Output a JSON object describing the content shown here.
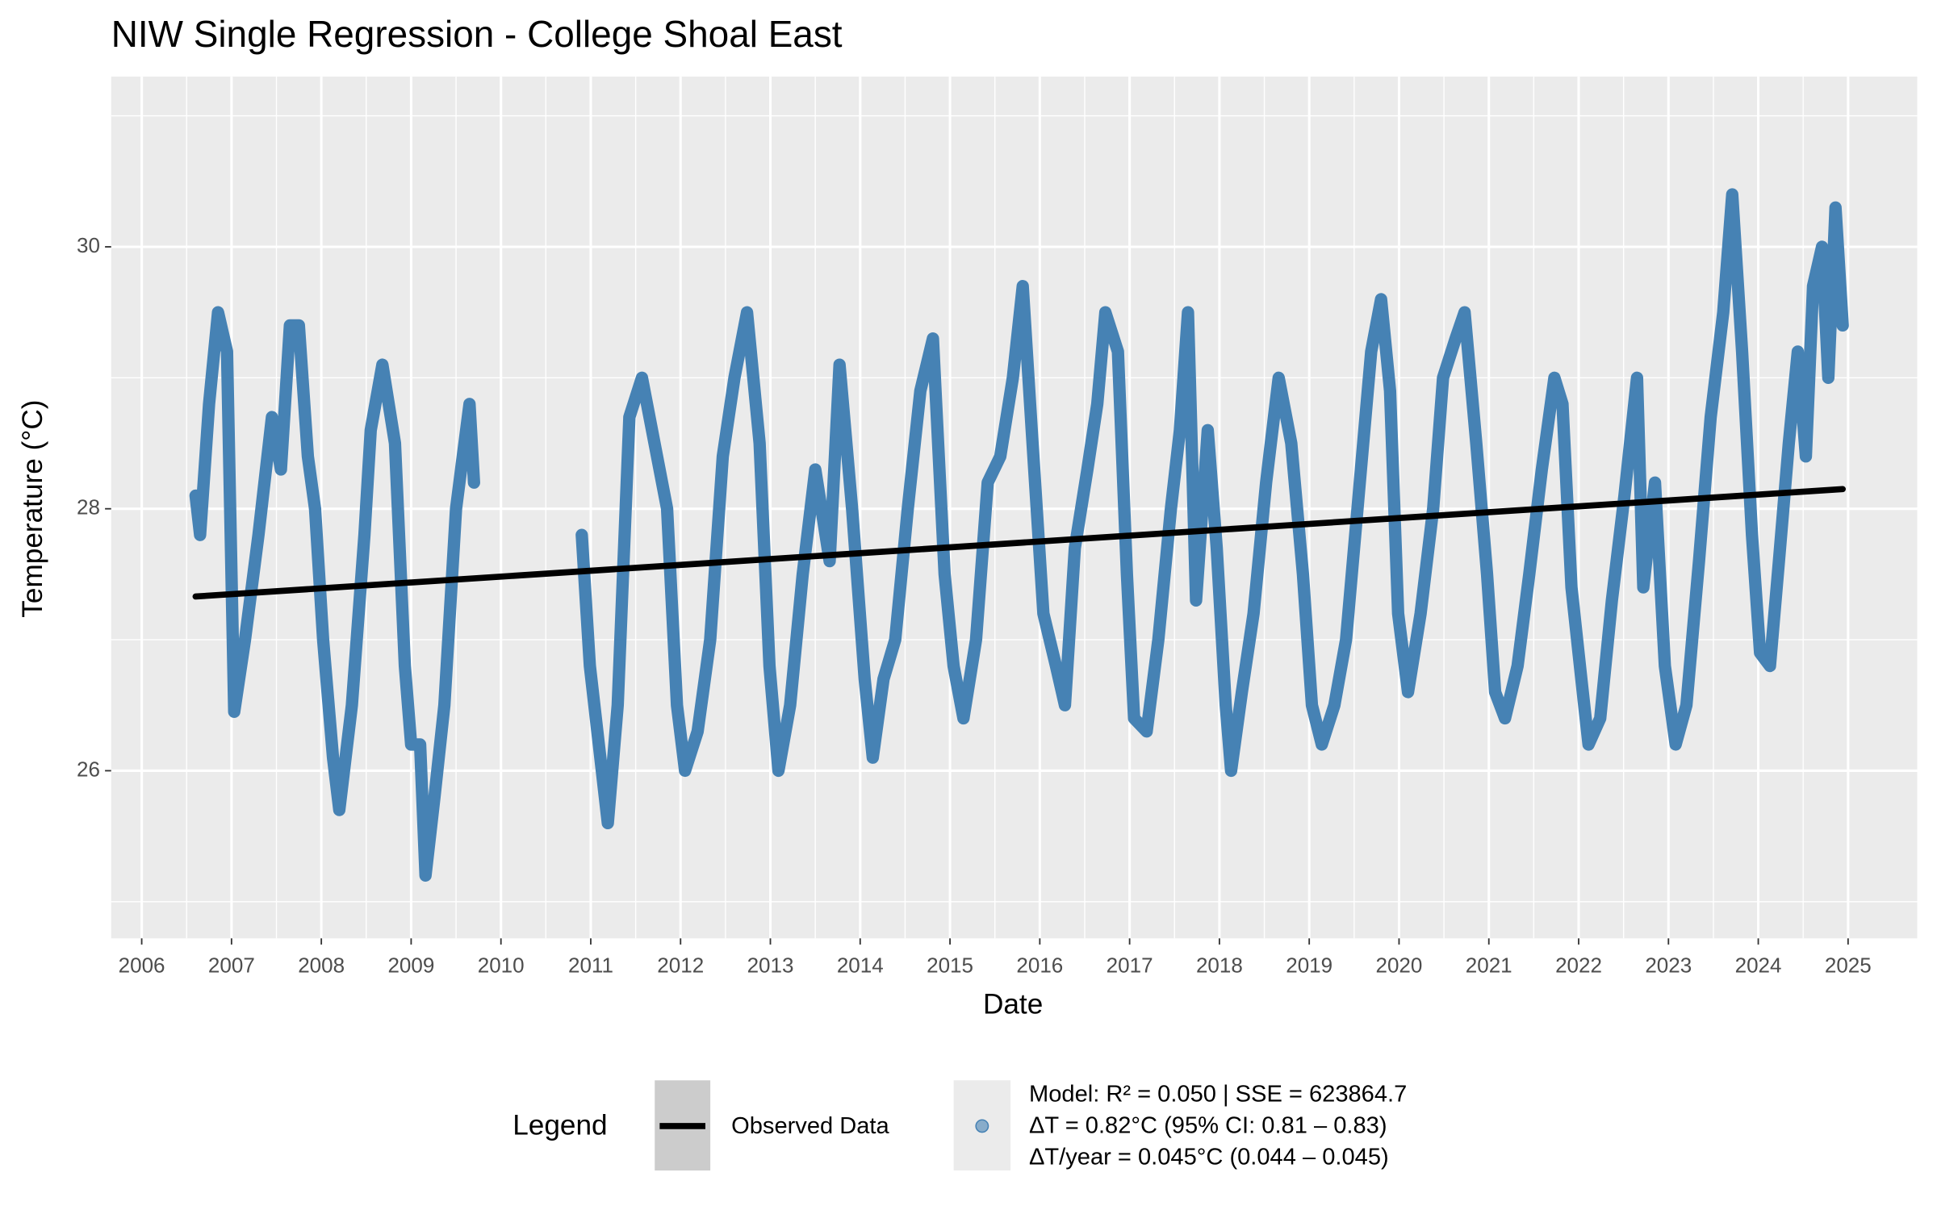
{
  "chart_data": {
    "type": "line",
    "title": "NIW Single Regression - College Shoal East",
    "x_label": "Date",
    "y_label": "Temperature (°C)",
    "legend_title": "Legend",
    "legend_position": "bottom",
    "grid": true,
    "xlim": [
      2005.66,
      2025.77
    ],
    "xticks": [
      2006,
      2007,
      2008,
      2009,
      2010,
      2011,
      2012,
      2013,
      2014,
      2015,
      2016,
      2017,
      2018,
      2019,
      2020,
      2021,
      2022,
      2023,
      2024,
      2025
    ],
    "ylim": [
      24.72,
      31.3
    ],
    "yticks": [
      26,
      28,
      30
    ],
    "minor_yticks": [
      25,
      27,
      29,
      31
    ],
    "series": [
      {
        "name": [
          "Model: R² = 0.050 | SSE = 623864.7",
          "ΔT = 0.82°C (95% CI: 0.81 – 0.83)",
          "ΔT/year = 0.045°C (0.044 – 0.045)"
        ],
        "marker": "point",
        "color": "#4682b4",
        "x": [
          2006.6,
          2006.65,
          2006.75,
          2006.85,
          2006.95,
          2007.03,
          2007.15,
          2007.3,
          2007.45,
          2007.55,
          2007.65,
          2007.75,
          2007.85,
          2007.93,
          2008.02,
          2008.13,
          2008.2,
          2008.34,
          2008.48,
          2008.55,
          2008.68,
          2008.82,
          2008.93,
          2009.0,
          2009.1,
          2009.16,
          2009.26,
          2009.37,
          2009.5,
          2009.65,
          2009.7,
          2010.3,
          2010.9,
          2010.99,
          2011.09,
          2011.19,
          2011.3,
          2011.43,
          2011.57,
          2011.71,
          2011.85,
          2011.96,
          2012.05,
          2012.19,
          2012.33,
          2012.47,
          2012.6,
          2012.74,
          2012.88,
          2012.99,
          2013.09,
          2013.22,
          2013.36,
          2013.5,
          2013.66,
          2013.77,
          2013.91,
          2014.05,
          2014.14,
          2014.26,
          2014.39,
          2014.53,
          2014.67,
          2014.81,
          2014.94,
          2015.04,
          2015.15,
          2015.29,
          2015.42,
          2015.56,
          2015.7,
          2015.81,
          2015.91,
          2016.04,
          2016.18,
          2016.28,
          2016.39,
          2016.53,
          2016.64,
          2016.73,
          2016.87,
          2016.97,
          2017.05,
          2017.19,
          2017.32,
          2017.46,
          2017.56,
          2017.65,
          2017.74,
          2017.87,
          2017.97,
          2018.07,
          2018.13,
          2018.25,
          2018.38,
          2018.52,
          2018.66,
          2018.8,
          2018.93,
          2019.03,
          2019.14,
          2019.28,
          2019.41,
          2019.55,
          2019.69,
          2019.8,
          2019.9,
          2019.99,
          2020.1,
          2020.24,
          2020.38,
          2020.49,
          2020.63,
          2020.73,
          2020.86,
          2020.98,
          2021.07,
          2021.18,
          2021.32,
          2021.45,
          2021.59,
          2021.73,
          2021.82,
          2021.92,
          2022.03,
          2022.11,
          2022.24,
          2022.37,
          2022.51,
          2022.65,
          2022.72,
          2022.85,
          2022.96,
          2023.08,
          2023.2,
          2023.34,
          2023.47,
          2023.61,
          2023.71,
          2023.82,
          2023.93,
          2024.02,
          2024.13,
          2024.23,
          2024.34,
          2024.44,
          2024.53,
          2024.61,
          2024.71,
          2024.78,
          2024.86,
          2024.94
        ],
        "values": [
          28.1,
          27.8,
          28.8,
          29.5,
          29.2,
          26.45,
          27.0,
          27.8,
          28.7,
          28.3,
          29.4,
          29.4,
          28.4,
          28.0,
          27.0,
          26.1,
          25.7,
          26.5,
          27.8,
          28.6,
          29.1,
          28.5,
          26.8,
          26.2,
          26.2,
          25.2,
          25.8,
          26.5,
          28.0,
          28.8,
          28.2,
          null,
          27.8,
          26.8,
          26.2,
          25.6,
          26.5,
          28.7,
          29.0,
          28.5,
          28.0,
          26.5,
          26.0,
          26.3,
          27.0,
          28.4,
          29.0,
          29.5,
          28.5,
          26.8,
          26.0,
          26.5,
          27.5,
          28.3,
          27.6,
          29.1,
          28.0,
          26.7,
          26.1,
          26.7,
          27.0,
          28.0,
          28.9,
          29.3,
          27.5,
          26.8,
          26.4,
          27.0,
          28.2,
          28.4,
          29.0,
          29.7,
          28.6,
          27.2,
          26.8,
          26.5,
          27.7,
          28.3,
          28.8,
          29.5,
          29.2,
          27.5,
          26.4,
          26.3,
          27.0,
          28.0,
          28.6,
          29.5,
          27.3,
          28.6,
          27.7,
          26.5,
          26.0,
          26.6,
          27.2,
          28.2,
          29.0,
          28.5,
          27.5,
          26.5,
          26.2,
          26.5,
          27.0,
          28.1,
          29.2,
          29.6,
          28.9,
          27.2,
          26.6,
          27.2,
          28.0,
          29.0,
          29.3,
          29.5,
          28.5,
          27.5,
          26.6,
          26.4,
          26.8,
          27.5,
          28.3,
          29.0,
          28.8,
          27.4,
          26.7,
          26.2,
          26.4,
          27.3,
          28.1,
          29.0,
          27.4,
          28.2,
          26.8,
          26.2,
          26.5,
          27.6,
          28.7,
          29.5,
          30.4,
          29.2,
          27.8,
          26.9,
          26.8,
          27.6,
          28.5,
          29.2,
          28.4,
          29.7,
          30.0,
          29.0,
          30.3,
          29.4
        ]
      },
      {
        "name": "Observed Data",
        "marker": "line",
        "color": "#000000",
        "x": [
          2006.6,
          2024.94
        ],
        "values": [
          27.33,
          28.15
        ]
      }
    ]
  }
}
